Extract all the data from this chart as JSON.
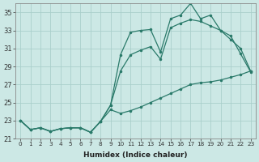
{
  "xlabel": "Humidex (Indice chaleur)",
  "background_color": "#cce8e5",
  "grid_color": "#aacfcb",
  "line_color": "#2a7a6a",
  "xlim_min": -0.5,
  "xlim_max": 23.5,
  "ylim_min": 21,
  "ylim_max": 36,
  "xticks": [
    0,
    1,
    2,
    3,
    4,
    5,
    6,
    7,
    8,
    9,
    10,
    11,
    12,
    13,
    14,
    15,
    16,
    17,
    18,
    19,
    20,
    21,
    22,
    23
  ],
  "yticks": [
    21,
    23,
    25,
    27,
    29,
    31,
    33,
    35
  ],
  "series1": [
    23.0,
    22.0,
    22.2,
    21.8,
    22.1,
    22.2,
    22.2,
    21.7,
    22.9,
    24.7,
    30.3,
    32.8,
    33.0,
    33.1,
    30.6,
    34.3,
    34.7,
    36.0,
    34.3,
    34.7,
    33.0,
    32.4,
    30.4,
    28.4
  ],
  "series2": [
    23.0,
    22.0,
    22.2,
    21.8,
    22.1,
    22.2,
    22.2,
    21.7,
    22.9,
    24.7,
    28.5,
    30.3,
    30.8,
    31.2,
    29.8,
    33.3,
    33.8,
    34.2,
    34.0,
    33.5,
    33.0,
    32.0,
    31.0,
    28.5
  ],
  "series3": [
    23.0,
    22.0,
    22.2,
    21.8,
    22.1,
    22.2,
    22.2,
    21.7,
    22.9,
    24.2,
    23.8,
    24.1,
    24.5,
    25.0,
    25.5,
    26.0,
    26.5,
    27.0,
    27.2,
    27.3,
    27.5,
    27.8,
    28.1,
    28.5
  ]
}
